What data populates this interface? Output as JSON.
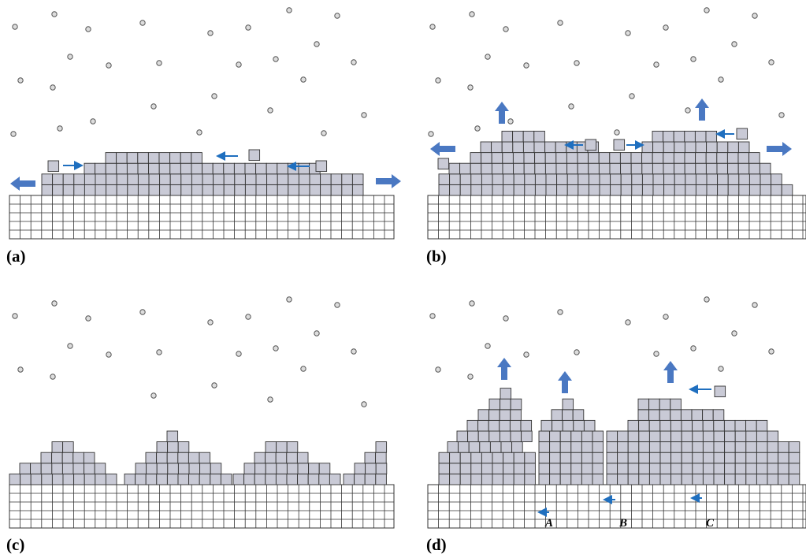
{
  "panels": [
    {
      "label": "(a)"
    },
    {
      "label": "(b)"
    },
    {
      "label": "(c)"
    },
    {
      "label": "(d)"
    }
  ],
  "markers": [
    {
      "label": "A"
    },
    {
      "label": "B"
    },
    {
      "label": "C"
    }
  ]
}
